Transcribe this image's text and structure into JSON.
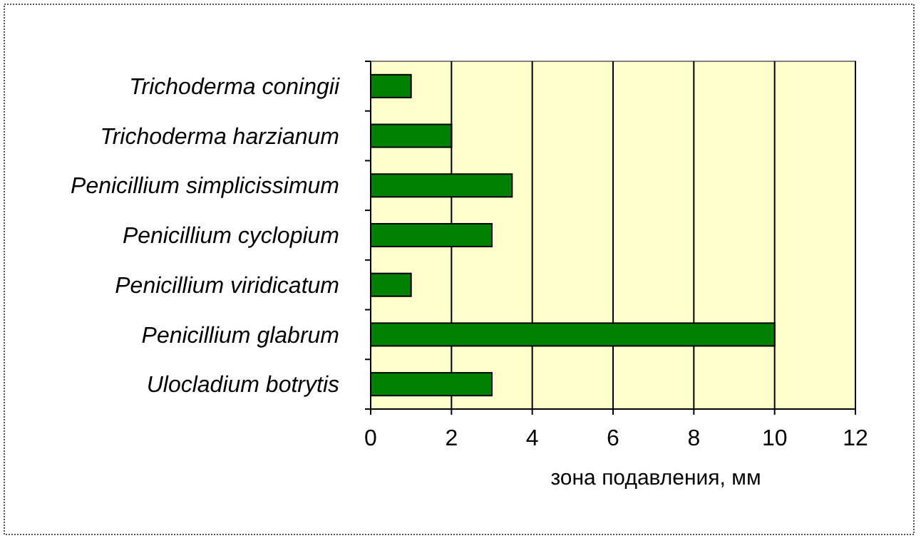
{
  "chart_data": {
    "type": "bar",
    "orientation": "horizontal",
    "categories": [
      "Trichoderma coningii",
      "Trichoderma harzianum",
      "Penicillium simplicissimum",
      "Penicillium cyclopium",
      "Penicillium viridicatum",
      "Penicillium glabrum",
      "Ulocladium botrytis"
    ],
    "values": [
      1,
      2,
      3.5,
      3,
      1,
      10,
      3
    ],
    "color": "#008000",
    "xlabel": "зона подавления,  мм",
    "xlim": [
      0,
      12
    ],
    "xticks": [
      0,
      2,
      4,
      6,
      8,
      10,
      12
    ],
    "grid": "x"
  }
}
